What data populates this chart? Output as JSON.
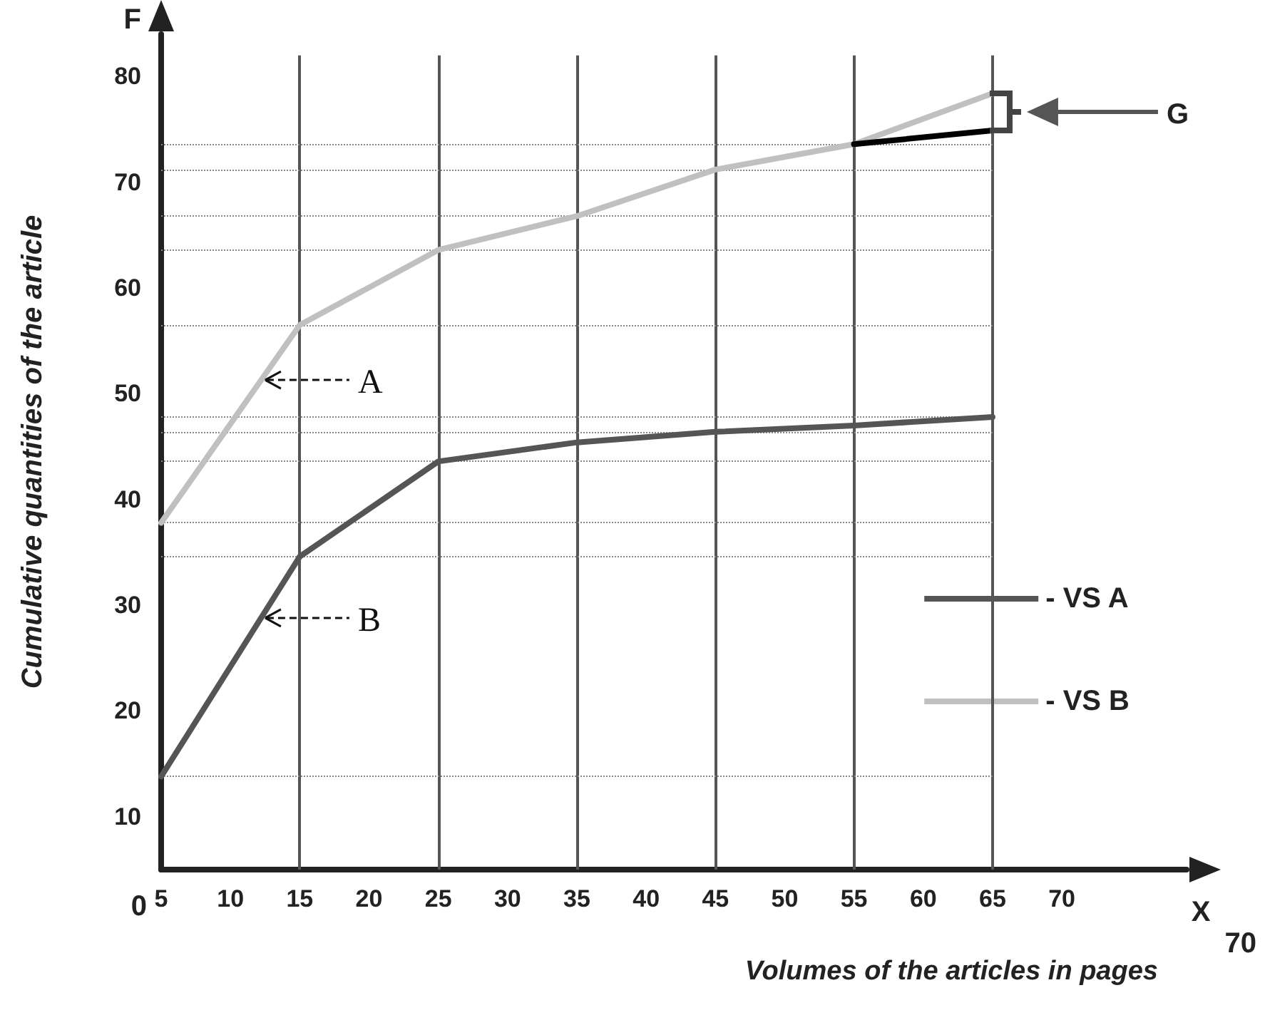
{
  "chart_data": {
    "type": "line",
    "xlabel": "Volumes of the articles in pages",
    "ylabel": "Cumulative quantities of the article",
    "x": [
      5,
      15,
      25,
      35,
      45,
      55,
      65
    ],
    "series": [
      {
        "name": "- VS A",
        "color": "#555555",
        "values": [
          13.8,
          34.6,
          43.6,
          45.4,
          46.4,
          47.0,
          47.8
        ]
      },
      {
        "name": "- VS B",
        "color": "#c0c0c0",
        "values": [
          37.8,
          56.5,
          63.6,
          66.8,
          71.2,
          73.6,
          78.4
        ]
      },
      {
        "color": "#000000",
        "x": [
          55,
          65
        ],
        "values": [
          73.6,
          74.9
        ]
      }
    ],
    "xlim": [
      5,
      79
    ],
    "xticks": [
      5,
      10,
      15,
      20,
      25,
      30,
      35,
      40,
      45,
      50,
      55,
      60,
      65,
      70
    ],
    "ylim": [
      5,
      84
    ],
    "yticks": [
      10,
      20,
      30,
      40,
      50,
      60,
      70,
      80
    ],
    "grid": false,
    "legend": "right",
    "marker": "none",
    "line_style": "solid",
    "ref_lines": [
      {
        "axis": "x",
        "value": 15,
        "color": "#555555",
        "line_style": "solid"
      },
      {
        "axis": "x",
        "value": 25,
        "color": "#555555",
        "line_style": "solid"
      },
      {
        "axis": "x",
        "value": 35,
        "color": "#555555",
        "line_style": "solid"
      },
      {
        "axis": "x",
        "value": 45,
        "color": "#555555",
        "line_style": "solid"
      },
      {
        "axis": "x",
        "value": 55,
        "color": "#555555",
        "line_style": "solid"
      },
      {
        "axis": "x",
        "value": 65,
        "color": "#555555",
        "line_style": "solid"
      },
      {
        "axis": "y",
        "value": 13.8,
        "color": "#888888",
        "line_style": "dotted"
      },
      {
        "axis": "y",
        "value": 34.6,
        "color": "#888888",
        "line_style": "dotted"
      },
      {
        "axis": "y",
        "value": 37.8,
        "color": "#888888",
        "line_style": "dotted"
      },
      {
        "axis": "y",
        "value": 43.6,
        "color": "#888888",
        "line_style": "dotted"
      },
      {
        "axis": "y",
        "value": 46.4,
        "color": "#888888",
        "line_style": "dotted"
      },
      {
        "axis": "y",
        "value": 47.8,
        "color": "#888888",
        "line_style": "dotted"
      },
      {
        "axis": "y",
        "value": 56.5,
        "color": "#888888",
        "line_style": "dotted"
      },
      {
        "axis": "y",
        "value": 63.6,
        "color": "#888888",
        "line_style": "dotted"
      },
      {
        "axis": "y",
        "value": 66.8,
        "color": "#888888",
        "line_style": "dotted"
      },
      {
        "axis": "y",
        "value": 71.2,
        "color": "#888888",
        "line_style": "dotted"
      },
      {
        "axis": "y",
        "value": 73.6,
        "color": "#888888",
        "line_style": "dotted"
      }
    ],
    "annotations": [
      {
        "text": "A",
        "x": 12.2,
        "y": 51.3
      },
      {
        "text": "B",
        "x": 12.2,
        "y": 28.8
      },
      "G",
      "F",
      "X",
      "0",
      "70"
    ]
  }
}
